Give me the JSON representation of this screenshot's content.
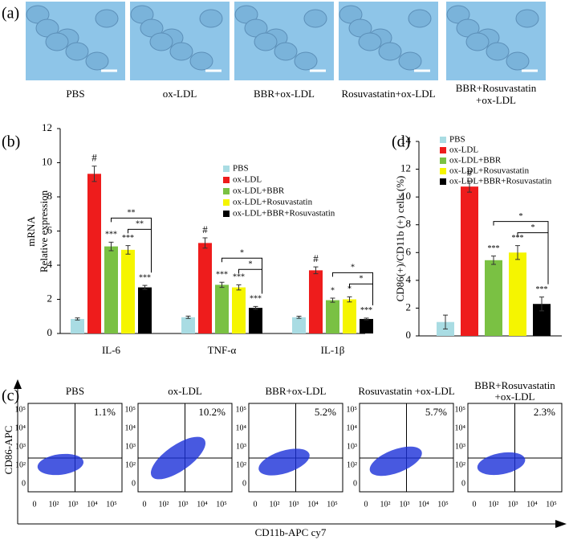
{
  "panel_labels": [
    "(a)",
    "(b)",
    "(c)",
    "(d)"
  ],
  "micrographs": {
    "labels": [
      [
        "PBS"
      ],
      [
        "ox-LDL"
      ],
      [
        "BBR+ox-LDL"
      ],
      [
        "Rosuvastatin+ox-LDL"
      ],
      [
        "BBR+Rosuvastatin",
        "+ox-LDL"
      ]
    ]
  },
  "flow": {
    "y_label": "CD86-APC",
    "x_label": "CD11b-APC cy7",
    "yticks": [
      "10⁵",
      "10⁴",
      "10³",
      "10²",
      "0"
    ],
    "xticks": [
      "0",
      "10²",
      "10³",
      "10⁴",
      "10⁵"
    ],
    "plots": [
      {
        "title": [
          "PBS"
        ],
        "percent": "1.1%"
      },
      {
        "title": [
          "ox-LDL"
        ],
        "percent": "10.2%"
      },
      {
        "title": [
          "BBR+ox-LDL"
        ],
        "percent": "5.2%"
      },
      {
        "title": [
          "Rosuvastatin +ox-LDL"
        ],
        "percent": "5.7%"
      },
      {
        "title": [
          "BBR+Rosuvastatin",
          "+ox-LDL"
        ],
        "percent": "2.3%"
      }
    ]
  },
  "chart_data": [
    {
      "type": "bar",
      "y_label": [
        "mRNA",
        "Relative expression"
      ],
      "categories": [
        "IL-6",
        "TNF-α",
        "IL-1β"
      ],
      "ylim": [
        0,
        12
      ],
      "yticks": [
        0,
        2,
        4,
        6,
        8,
        10,
        12
      ],
      "legend": "upper right",
      "series": [
        {
          "name": "PBS",
          "color": "#a9dce3",
          "values": [
            0.85,
            0.95,
            0.95
          ],
          "errors": [
            0.06,
            0.07,
            0.06
          ],
          "markers": [
            null,
            null,
            null
          ]
        },
        {
          "name": "ox-LDL",
          "color": "#ee1c1c",
          "values": [
            9.35,
            5.3,
            3.7
          ],
          "errors": [
            0.45,
            0.3,
            0.2
          ],
          "markers": [
            "#",
            "#",
            "#"
          ]
        },
        {
          "name": "ox-LDL+BBR",
          "color": "#7ac143",
          "values": [
            5.1,
            2.85,
            1.95
          ],
          "errors": [
            0.25,
            0.15,
            0.12
          ],
          "markers": [
            "***",
            "***",
            "*"
          ]
        },
        {
          "name": "ox-LDL+Rosuvastatin",
          "color": "#f5f500",
          "values": [
            4.9,
            2.7,
            2.0
          ],
          "errors": [
            0.25,
            0.15,
            0.15
          ],
          "markers": [
            "***",
            "***",
            "*"
          ]
        },
        {
          "name": "ox-LDL+BBR+Rosuvastatin",
          "color": "#000000",
          "values": [
            2.7,
            1.5,
            0.85
          ],
          "errors": [
            0.12,
            0.08,
            0.05
          ],
          "markers": [
            "***",
            "***",
            "***"
          ]
        }
      ],
      "brackets": [
        [
          "**",
          "**"
        ],
        [
          "*",
          "*"
        ],
        [
          "*",
          "*"
        ]
      ]
    },
    {
      "type": "bar",
      "y_label": [
        "CD86(+)/CD11b (+) cells (%)"
      ],
      "categories": [
        null
      ],
      "ylim": [
        0,
        14
      ],
      "yticks": [
        0,
        2,
        4,
        6,
        8,
        10,
        12,
        14
      ],
      "legend": "upper left",
      "series": [
        {
          "name": "PBS",
          "color": "#a9dce3",
          "values": [
            1.0
          ],
          "errors": [
            0.5
          ],
          "markers": [
            null
          ]
        },
        {
          "name": "ox-LDL",
          "color": "#ee1c1c",
          "values": [
            10.75
          ],
          "errors": [
            0.4
          ],
          "markers": [
            "#"
          ]
        },
        {
          "name": "ox-LDL+BBR",
          "color": "#7ac143",
          "values": [
            5.45
          ],
          "errors": [
            0.3
          ],
          "markers": [
            "***"
          ]
        },
        {
          "name": "ox-LDL+Rosuvastatin",
          "color": "#f5f500",
          "values": [
            6.0
          ],
          "errors": [
            0.5
          ],
          "markers": [
            "***"
          ]
        },
        {
          "name": "ox-LDL+BBR+Rosuvastatin",
          "color": "#000000",
          "values": [
            2.3
          ],
          "errors": [
            0.5
          ],
          "markers": [
            "***"
          ]
        }
      ],
      "brackets": [
        [
          "*",
          "*"
        ]
      ]
    }
  ]
}
